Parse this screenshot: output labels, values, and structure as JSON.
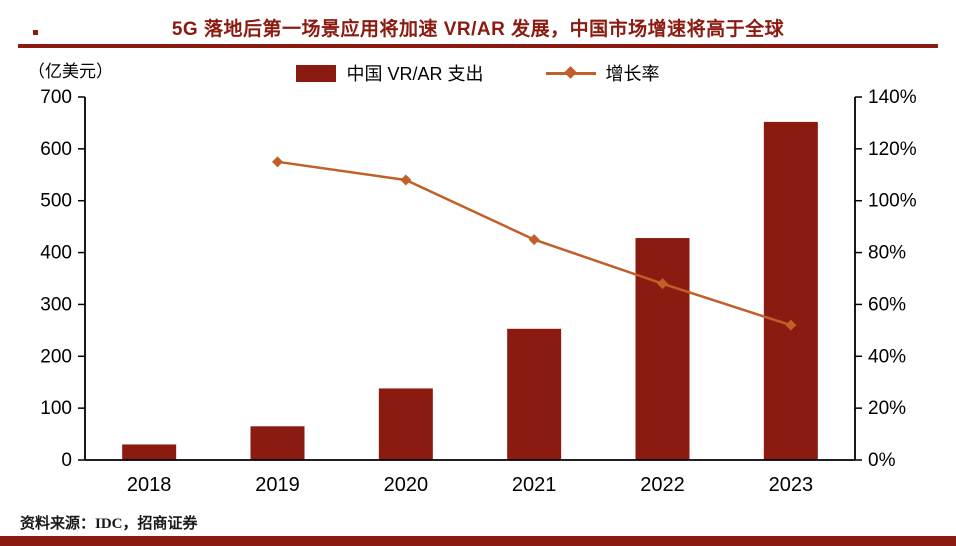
{
  "header": {
    "title": "5G 落地后第一场景应用将加速 VR/AR 发展，中国市场增速将高于全球"
  },
  "unit_label": "（亿美元）",
  "legend": {
    "bar_label": "中国 VR/AR 支出",
    "line_label": "增长率"
  },
  "source": "资料来源：IDC，招商证券",
  "colors": {
    "bar": "#8b1a10",
    "line": "#c05f28",
    "title": "#8b1a10",
    "axis": "#000000"
  },
  "chart_data": {
    "type": "bar",
    "title": "5G 落地后第一场景应用将加速 VR/AR 发展，中国市场增速将高于全球",
    "categories": [
      "2018",
      "2019",
      "2020",
      "2021",
      "2022",
      "2023"
    ],
    "series": [
      {
        "name": "中国 VR/AR 支出",
        "type": "bar",
        "axis": "left",
        "unit": "亿美元",
        "values": [
          30,
          65,
          138,
          253,
          428,
          652
        ]
      },
      {
        "name": "增长率",
        "type": "line",
        "axis": "right",
        "unit": "%",
        "values": [
          null,
          115,
          108,
          85,
          68,
          52
        ]
      }
    ],
    "left_axis": {
      "label": "（亿美元）",
      "min": 0,
      "max": 700,
      "step": 100
    },
    "right_axis": {
      "label": "",
      "min": 0,
      "max": 140,
      "step": 20,
      "unit": "%"
    },
    "grid": false,
    "legend_position": "top"
  }
}
